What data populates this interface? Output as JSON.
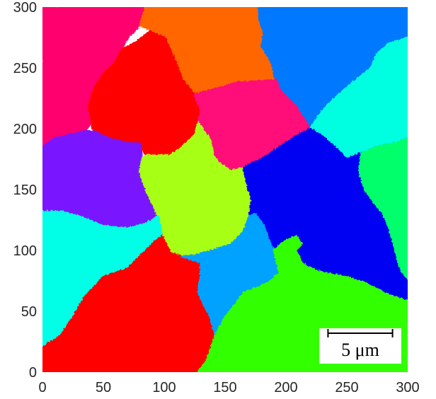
{
  "chart_data": {
    "type": "heatmap",
    "description_kind": "grain-orientation map",
    "xlim": [
      0,
      300
    ],
    "ylim": [
      0,
      300
    ],
    "x_ticks": [
      0,
      50,
      100,
      150,
      200,
      250,
      300
    ],
    "y_ticks": [
      0,
      50,
      100,
      150,
      200,
      250,
      300
    ],
    "grid": false,
    "scale_bar": {
      "label": "5 μm",
      "length_data_units": 53
    },
    "grains": [
      {
        "color": "#FF006E",
        "points": [
          [
            0,
            300
          ],
          [
            85,
            300
          ],
          [
            80,
            285
          ],
          [
            70,
            275
          ],
          [
            65,
            265
          ],
          [
            60,
            255
          ],
          [
            50,
            245
          ],
          [
            42,
            232
          ],
          [
            38,
            218
          ],
          [
            40,
            205
          ],
          [
            35,
            198
          ],
          [
            10,
            192
          ],
          [
            0,
            185
          ]
        ]
      },
      {
        "color": "#FF6600",
        "points": [
          [
            85,
            300
          ],
          [
            178,
            300
          ],
          [
            178,
            290
          ],
          [
            182,
            280
          ],
          [
            180,
            268
          ],
          [
            188,
            255
          ],
          [
            192,
            240
          ],
          [
            160,
            238
          ],
          [
            140,
            232
          ],
          [
            125,
            228
          ],
          [
            115,
            240
          ],
          [
            108,
            258
          ],
          [
            100,
            275
          ],
          [
            85,
            283
          ],
          [
            80,
            285
          ]
        ]
      },
      {
        "color": "#0078FF",
        "points": [
          [
            178,
            300
          ],
          [
            300,
            300
          ],
          [
            300,
            275
          ],
          [
            285,
            270
          ],
          [
            275,
            262
          ],
          [
            270,
            250
          ],
          [
            255,
            238
          ],
          [
            240,
            225
          ],
          [
            230,
            215
          ],
          [
            220,
            200
          ],
          [
            208,
            218
          ],
          [
            195,
            232
          ],
          [
            192,
            240
          ],
          [
            188,
            255
          ],
          [
            180,
            268
          ],
          [
            182,
            280
          ],
          [
            178,
            290
          ]
        ]
      },
      {
        "color": "#FF0000",
        "points": [
          [
            100,
            275
          ],
          [
            108,
            258
          ],
          [
            115,
            240
          ],
          [
            125,
            228
          ],
          [
            130,
            215
          ],
          [
            128,
            205
          ],
          [
            125,
            195
          ],
          [
            115,
            185
          ],
          [
            105,
            178
          ],
          [
            85,
            178
          ],
          [
            80,
            188
          ],
          [
            55,
            192
          ],
          [
            42,
            198
          ],
          [
            38,
            218
          ],
          [
            42,
            232
          ],
          [
            50,
            245
          ],
          [
            60,
            255
          ],
          [
            65,
            265
          ],
          [
            78,
            272
          ],
          [
            88,
            280
          ]
        ]
      },
      {
        "color": "#FF0A78",
        "points": [
          [
            125,
            228
          ],
          [
            140,
            232
          ],
          [
            160,
            238
          ],
          [
            192,
            240
          ],
          [
            195,
            232
          ],
          [
            208,
            218
          ],
          [
            220,
            200
          ],
          [
            210,
            195
          ],
          [
            195,
            185
          ],
          [
            180,
            175
          ],
          [
            165,
            168
          ],
          [
            155,
            165
          ],
          [
            145,
            172
          ],
          [
            140,
            178
          ],
          [
            138,
            190
          ],
          [
            130,
            202
          ],
          [
            128,
            205
          ],
          [
            130,
            215
          ]
        ]
      },
      {
        "color": "#00FFE0",
        "points": [
          [
            300,
            275
          ],
          [
            300,
            192
          ],
          [
            290,
            188
          ],
          [
            275,
            185
          ],
          [
            262,
            180
          ],
          [
            250,
            175
          ],
          [
            240,
            185
          ],
          [
            228,
            195
          ],
          [
            220,
            200
          ],
          [
            230,
            215
          ],
          [
            240,
            225
          ],
          [
            255,
            238
          ],
          [
            270,
            250
          ],
          [
            275,
            262
          ],
          [
            285,
            270
          ]
        ]
      },
      {
        "color": "#7A14FF",
        "points": [
          [
            0,
            185
          ],
          [
            10,
            192
          ],
          [
            35,
            198
          ],
          [
            42,
            198
          ],
          [
            55,
            192
          ],
          [
            70,
            188
          ],
          [
            80,
            188
          ],
          [
            82,
            175
          ],
          [
            80,
            165
          ],
          [
            85,
            150
          ],
          [
            90,
            140
          ],
          [
            95,
            128
          ],
          [
            85,
            122
          ],
          [
            70,
            118
          ],
          [
            50,
            120
          ],
          [
            30,
            128
          ],
          [
            15,
            132
          ],
          [
            0,
            132
          ]
        ]
      },
      {
        "color": "#A8FF14",
        "points": [
          [
            82,
            175
          ],
          [
            85,
            178
          ],
          [
            105,
            178
          ],
          [
            115,
            185
          ],
          [
            125,
            195
          ],
          [
            128,
            205
          ],
          [
            130,
            202
          ],
          [
            138,
            190
          ],
          [
            140,
            178
          ],
          [
            145,
            172
          ],
          [
            155,
            165
          ],
          [
            165,
            168
          ],
          [
            168,
            155
          ],
          [
            172,
            142
          ],
          [
            170,
            128
          ],
          [
            165,
            115
          ],
          [
            155,
            105
          ],
          [
            140,
            100
          ],
          [
            125,
            96
          ],
          [
            115,
            95
          ],
          [
            105,
            98
          ],
          [
            98,
            112
          ],
          [
            95,
            128
          ],
          [
            90,
            140
          ],
          [
            85,
            150
          ],
          [
            80,
            165
          ]
        ]
      },
      {
        "color": "#0000F2",
        "points": [
          [
            165,
            168
          ],
          [
            180,
            175
          ],
          [
            195,
            185
          ],
          [
            210,
            195
          ],
          [
            220,
            200
          ],
          [
            228,
            195
          ],
          [
            240,
            185
          ],
          [
            250,
            175
          ],
          [
            262,
            180
          ],
          [
            275,
            185
          ],
          [
            290,
            188
          ],
          [
            300,
            192
          ],
          [
            300,
            75
          ],
          [
            295,
            80
          ],
          [
            290,
            90
          ],
          [
            280,
            95
          ],
          [
            270,
            100
          ],
          [
            255,
            105
          ],
          [
            240,
            110
          ],
          [
            225,
            112
          ],
          [
            210,
            112
          ],
          [
            200,
            108
          ],
          [
            190,
            100
          ],
          [
            185,
            110
          ],
          [
            182,
            120
          ],
          [
            175,
            130
          ],
          [
            170,
            128
          ],
          [
            172,
            142
          ],
          [
            168,
            155
          ]
        ]
      },
      {
        "color": "#00FF6A",
        "points": [
          [
            300,
            192
          ],
          [
            290,
            188
          ],
          [
            275,
            185
          ],
          [
            262,
            180
          ],
          [
            260,
            165
          ],
          [
            265,
            150
          ],
          [
            272,
            140
          ],
          [
            280,
            130
          ],
          [
            285,
            118
          ],
          [
            290,
            100
          ],
          [
            295,
            80
          ],
          [
            300,
            75
          ]
        ]
      },
      {
        "color": "#00FFE6",
        "points": [
          [
            0,
            132
          ],
          [
            15,
            132
          ],
          [
            30,
            128
          ],
          [
            50,
            120
          ],
          [
            70,
            118
          ],
          [
            85,
            122
          ],
          [
            95,
            128
          ],
          [
            98,
            112
          ],
          [
            90,
            105
          ],
          [
            80,
            95
          ],
          [
            70,
            85
          ],
          [
            50,
            78
          ],
          [
            35,
            62
          ],
          [
            25,
            45
          ],
          [
            15,
            30
          ],
          [
            0,
            20
          ]
        ]
      },
      {
        "color": "#FF0000",
        "points": [
          [
            0,
            20
          ],
          [
            15,
            30
          ],
          [
            25,
            45
          ],
          [
            35,
            62
          ],
          [
            50,
            78
          ],
          [
            70,
            85
          ],
          [
            80,
            95
          ],
          [
            90,
            105
          ],
          [
            98,
            112
          ],
          [
            105,
            98
          ],
          [
            115,
            95
          ],
          [
            125,
            96
          ],
          [
            130,
            90
          ],
          [
            130,
            80
          ],
          [
            128,
            65
          ],
          [
            138,
            45
          ],
          [
            142,
            30
          ],
          [
            138,
            18
          ],
          [
            135,
            10
          ],
          [
            128,
            0
          ],
          [
            0,
            0
          ]
        ]
      },
      {
        "color": "#00A2FF",
        "points": [
          [
            115,
            95
          ],
          [
            125,
            96
          ],
          [
            140,
            100
          ],
          [
            155,
            105
          ],
          [
            165,
            115
          ],
          [
            170,
            128
          ],
          [
            175,
            130
          ],
          [
            182,
            120
          ],
          [
            185,
            110
          ],
          [
            190,
            100
          ],
          [
            200,
            108
          ],
          [
            210,
            112
          ],
          [
            215,
            105
          ],
          [
            205,
            95
          ],
          [
            195,
            82
          ],
          [
            188,
            75
          ],
          [
            178,
            70
          ],
          [
            165,
            65
          ],
          [
            158,
            55
          ],
          [
            150,
            45
          ],
          [
            142,
            30
          ],
          [
            138,
            45
          ],
          [
            128,
            65
          ],
          [
            130,
            80
          ],
          [
            130,
            90
          ]
        ]
      },
      {
        "color": "#33FF00",
        "points": [
          [
            128,
            0
          ],
          [
            300,
            0
          ],
          [
            300,
            60
          ],
          [
            285,
            65
          ],
          [
            275,
            70
          ],
          [
            265,
            75
          ],
          [
            250,
            80
          ],
          [
            238,
            82
          ],
          [
            225,
            85
          ],
          [
            215,
            90
          ],
          [
            210,
            100
          ],
          [
            215,
            105
          ],
          [
            210,
            112
          ],
          [
            200,
            108
          ],
          [
            190,
            100
          ],
          [
            195,
            82
          ],
          [
            188,
            75
          ],
          [
            178,
            70
          ],
          [
            165,
            65
          ],
          [
            158,
            55
          ],
          [
            150,
            45
          ],
          [
            142,
            30
          ],
          [
            138,
            18
          ],
          [
            135,
            10
          ]
        ]
      },
      {
        "color": "#0000F2",
        "points": [
          [
            210,
            112
          ],
          [
            225,
            112
          ],
          [
            240,
            110
          ],
          [
            255,
            105
          ],
          [
            270,
            100
          ],
          [
            280,
            95
          ],
          [
            290,
            90
          ],
          [
            295,
            80
          ],
          [
            300,
            75
          ],
          [
            300,
            60
          ],
          [
            285,
            65
          ],
          [
            275,
            70
          ],
          [
            265,
            75
          ],
          [
            250,
            80
          ],
          [
            238,
            82
          ],
          [
            225,
            85
          ],
          [
            215,
            90
          ],
          [
            210,
            100
          ],
          [
            215,
            105
          ]
        ]
      }
    ]
  }
}
